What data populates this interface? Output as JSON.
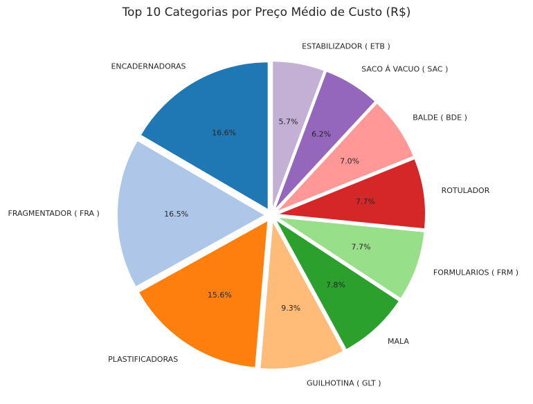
{
  "chart_data": {
    "type": "pie",
    "title": "Top 10 Categorias por Preço Médio de Custo (R$)",
    "start_angle_deg": 90,
    "direction": "counterclockwise",
    "explode": true,
    "slices": [
      {
        "label": "ENCADERNADORAS",
        "percent": 16.6,
        "percent_label": "16.6%",
        "color": "#1f77b4"
      },
      {
        "label": "FRAGMENTADOR ( FRA )",
        "percent": 16.5,
        "percent_label": "16.5%",
        "color": "#aec7e8"
      },
      {
        "label": "PLASTIFICADORAS",
        "percent": 15.6,
        "percent_label": "15.6%",
        "color": "#ff7f0e"
      },
      {
        "label": "GUILHOTINA ( GLT )",
        "percent": 9.3,
        "percent_label": "9.3%",
        "color": "#ffbb78"
      },
      {
        "label": "MALA",
        "percent": 7.8,
        "percent_label": "7.8%",
        "color": "#2ca02c"
      },
      {
        "label": "FORMULARIOS ( FRM )",
        "percent": 7.7,
        "percent_label": "7.7%",
        "color": "#98df8a"
      },
      {
        "label": "ROTULADOR",
        "percent": 7.7,
        "percent_label": "7.7%",
        "color": "#d62728"
      },
      {
        "label": "BALDE ( BDE )",
        "percent": 7.0,
        "percent_label": "7.0%",
        "color": "#ff9896"
      },
      {
        "label": "SACO Á VACUO ( SAC )",
        "percent": 6.2,
        "percent_label": "6.2%",
        "color": "#9467bd"
      },
      {
        "label": "ESTABILIZADOR ( ETB )",
        "percent": 5.7,
        "percent_label": "5.7%",
        "color": "#c5b0d5"
      }
    ]
  }
}
